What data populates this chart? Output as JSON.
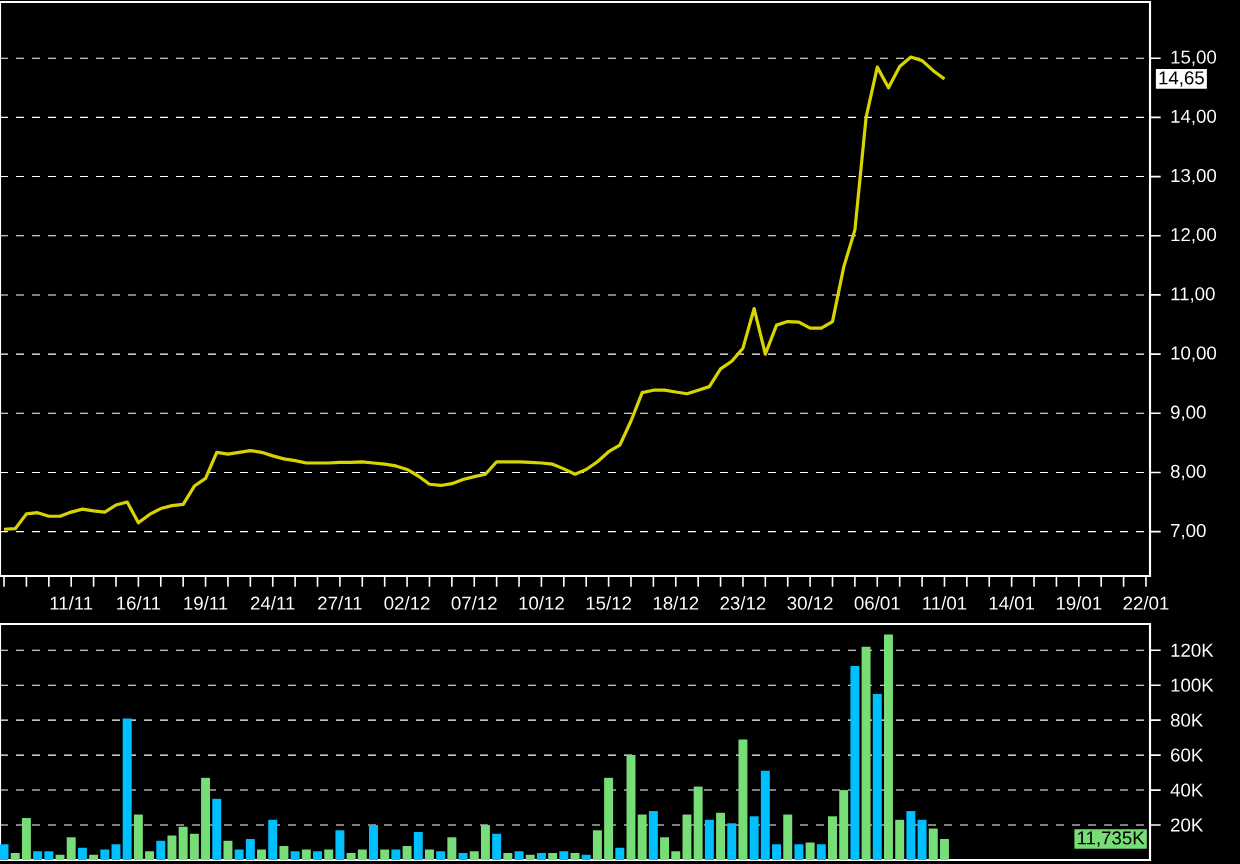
{
  "chart_data": [
    {
      "type": "line",
      "color": "#d8d400",
      "categories": [
        null,
        null,
        null,
        null,
        null,
        null,
        "11/11",
        null,
        null,
        null,
        null,
        null,
        "16/11",
        null,
        null,
        null,
        null,
        null,
        "19/11",
        null,
        null,
        null,
        null,
        null,
        "24/11",
        null,
        null,
        null,
        null,
        null,
        "27/11",
        null,
        null,
        null,
        null,
        null,
        "02/12",
        null,
        null,
        null,
        null,
        null,
        "07/12",
        null,
        null,
        null,
        null,
        null,
        "10/12",
        null,
        null,
        null,
        null,
        null,
        "15/12",
        null,
        null,
        null,
        null,
        null,
        "18/12",
        null,
        null,
        null,
        null,
        null,
        "23/12",
        null,
        null,
        null,
        null,
        null,
        "30/12",
        null,
        null,
        null,
        null,
        null,
        "06/01",
        null,
        null,
        null,
        null,
        null,
        "11/01",
        null,
        null,
        null,
        null,
        null,
        "14/01",
        null,
        null,
        null,
        null,
        null,
        "19/01",
        null,
        null,
        null,
        null,
        null,
        "22/01"
      ],
      "values": [
        7.04,
        7.05,
        7.3,
        7.32,
        7.26,
        7.26,
        7.33,
        7.38,
        7.35,
        7.33,
        7.45,
        7.5,
        7.15,
        7.29,
        7.39,
        7.44,
        7.46,
        7.77,
        7.9,
        8.34,
        8.31,
        8.34,
        8.37,
        8.34,
        8.28,
        8.23,
        8.2,
        8.16,
        8.16,
        8.16,
        8.17,
        8.17,
        8.18,
        8.16,
        8.14,
        8.11,
        8.05,
        7.94,
        7.8,
        7.78,
        7.81,
        7.88,
        7.93,
        7.97,
        8.18,
        8.18,
        8.18,
        8.17,
        8.16,
        8.14,
        8.06,
        7.97,
        8.05,
        8.18,
        8.35,
        8.46,
        8.87,
        9.35,
        9.39,
        9.39,
        9.36,
        9.33,
        9.39,
        9.45,
        9.75,
        9.88,
        10.1,
        10.77,
        10.0,
        10.49,
        10.55,
        10.54,
        10.44,
        10.44,
        10.55,
        11.47,
        12.1,
        14.0,
        14.85,
        14.5,
        14.86,
        15.02,
        14.96,
        14.79,
        14.65,
        null,
        null,
        null,
        null,
        null,
        null,
        null,
        null,
        null,
        null,
        null,
        null,
        null,
        null,
        null,
        null,
        null,
        null
      ],
      "ylim": [
        6.25,
        15.95
      ],
      "yticks": [
        {
          "value": 7,
          "label": "7,00"
        },
        {
          "value": 8,
          "label": "8,00"
        },
        {
          "value": 9,
          "label": "9,00"
        },
        {
          "value": 10,
          "label": "10,00"
        },
        {
          "value": 11,
          "label": "11,00"
        },
        {
          "value": 12,
          "label": "12,00"
        },
        {
          "value": 13,
          "label": "13,00"
        },
        {
          "value": 14,
          "label": "14,00"
        },
        {
          "value": 15,
          "label": "15,00"
        }
      ],
      "grid": "y",
      "annotations": [
        "14,65"
      ]
    },
    {
      "type": "bar",
      "tick_labels": "y",
      "categories": [
        null,
        null,
        null,
        null,
        null,
        null,
        null,
        null,
        null,
        null,
        null,
        null,
        null,
        null,
        null,
        null,
        null,
        null,
        null,
        null,
        null,
        null,
        null,
        null,
        null,
        null,
        null,
        null,
        null,
        null,
        null,
        null,
        null,
        null,
        null,
        null,
        null,
        null,
        null,
        null,
        null,
        null,
        null,
        null,
        null,
        null,
        null,
        null,
        null,
        null,
        null,
        null,
        null,
        null,
        null,
        null,
        null,
        null,
        null,
        null,
        null,
        null,
        null,
        null,
        null,
        null,
        null,
        null,
        null,
        null,
        null,
        null,
        null,
        null,
        null,
        null,
        null,
        null,
        null,
        null,
        null,
        null,
        null,
        null,
        null,
        null,
        null,
        null,
        null,
        null,
        null,
        null,
        null,
        null,
        null,
        null,
        null,
        null,
        null,
        null,
        null,
        null,
        null
      ],
      "values": [
        9,
        4,
        24,
        5,
        5,
        3,
        13,
        7,
        3,
        6,
        9,
        81,
        26,
        5,
        11,
        14,
        19,
        15,
        47,
        35,
        11,
        6,
        12,
        6,
        23,
        8,
        5,
        6,
        5,
        6,
        17,
        4,
        6,
        20,
        6,
        6,
        8,
        16,
        6,
        5,
        13,
        4,
        5,
        20,
        15,
        4,
        5,
        3,
        4,
        4,
        5,
        4,
        3,
        17,
        47,
        7,
        60,
        26,
        28,
        13,
        5,
        26,
        42,
        23,
        27,
        21,
        69,
        25,
        51,
        9,
        26,
        9,
        10,
        9,
        25,
        40,
        111,
        122,
        95,
        129,
        23,
        28,
        23,
        18,
        12,
        null,
        null,
        null,
        null,
        null,
        null,
        null,
        null,
        null,
        null,
        null,
        null,
        null,
        null,
        null,
        null,
        null,
        null
      ],
      "colors": [
        "#00bfff",
        "#77dd77",
        "#77dd77",
        "#00bfff",
        "#00bfff",
        "#77dd77",
        "#77dd77",
        "#00bfff",
        "#77dd77",
        "#00bfff",
        "#00bfff",
        "#00bfff",
        "#77dd77",
        "#77dd77",
        "#00bfff",
        "#77dd77",
        "#77dd77",
        "#77dd77",
        "#77dd77",
        "#00bfff",
        "#77dd77",
        "#00bfff",
        "#00bfff",
        "#77dd77",
        "#00bfff",
        "#77dd77",
        "#00bfff",
        "#77dd77",
        "#00bfff",
        "#77dd77",
        "#00bfff",
        "#77dd77",
        "#77dd77",
        "#00bfff",
        "#77dd77",
        "#00bfff",
        "#77dd77",
        "#00bfff",
        "#77dd77",
        "#00bfff",
        "#77dd77",
        "#00bfff",
        "#77dd77",
        "#77dd77",
        "#00bfff",
        "#77dd77",
        "#00bfff",
        "#77dd77",
        "#00bfff",
        "#77dd77",
        "#00bfff",
        "#77dd77",
        "#00bfff",
        "#77dd77",
        "#77dd77",
        "#00bfff",
        "#77dd77",
        "#77dd77",
        "#00bfff",
        "#77dd77",
        "#77dd77",
        "#77dd77",
        "#77dd77",
        "#00bfff",
        "#77dd77",
        "#00bfff",
        "#77dd77",
        "#00bfff",
        "#00bfff",
        "#00bfff",
        "#77dd77",
        "#00bfff",
        "#77dd77",
        "#00bfff",
        "#77dd77",
        "#77dd77",
        "#00bfff",
        "#77dd77",
        "#00bfff",
        "#77dd77",
        "#77dd77",
        "#00bfff",
        "#00bfff",
        "#77dd77",
        "#77dd77",
        null,
        null,
        null,
        null,
        null,
        null,
        null,
        null,
        null,
        null,
        null,
        null,
        null,
        null,
        null,
        null,
        null,
        null
      ],
      "ylim": [
        0,
        135
      ],
      "yticks": [
        {
          "value": 20,
          "label": "20K"
        },
        {
          "value": 40,
          "label": "40K"
        },
        {
          "value": 60,
          "label": "60K"
        },
        {
          "value": 80,
          "label": "80K"
        },
        {
          "value": 100,
          "label": "100K"
        },
        {
          "value": 120,
          "label": "120K"
        }
      ],
      "grid": "y",
      "annotations": [
        "11,735K"
      ]
    }
  ]
}
